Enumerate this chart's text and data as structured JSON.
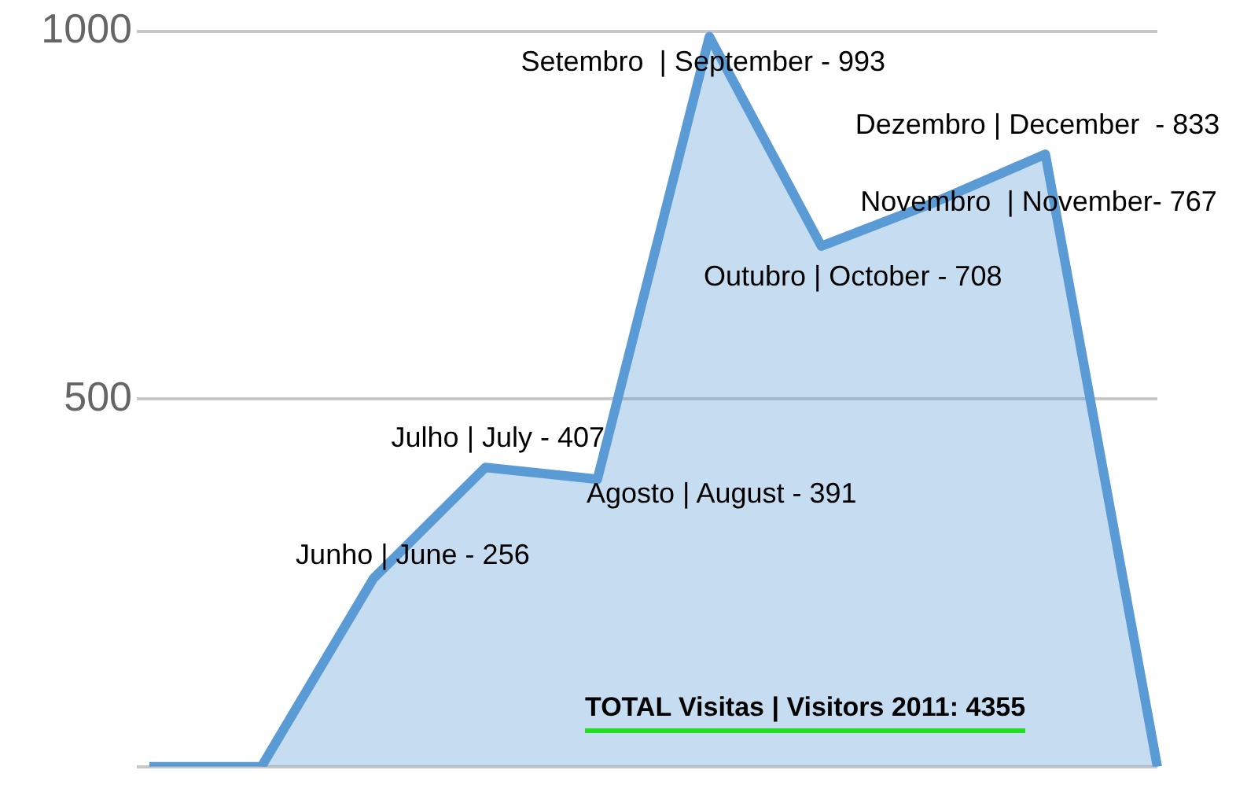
{
  "chart_data": {
    "type": "area",
    "categories": [
      null,
      null,
      null,
      null,
      null,
      null,
      null,
      null,
      null,
      null
    ],
    "series": [
      {
        "color": "#5b9bd5",
        "values": [
          0,
          0,
          256,
          407,
          391,
          993,
          708,
          767,
          833,
          0
        ],
        "value_labels": [
          null,
          null,
          "Junho | June - 256",
          "Julho | July - 407",
          "Agosto | August - 391",
          "Setembro  | September - 993",
          "Outubro | October - 708",
          "Novembro  | November- 767",
          "Dezembro | December  - 833",
          null
        ]
      }
    ],
    "ylim": [
      0,
      1000
    ],
    "yticks": [
      {
        "value": 0,
        "label": null
      },
      500,
      1000
    ],
    "grid": "y",
    "tick_labels": "y",
    "annotations": [
      "TOTAL Visitas  | Visitors 2011: 4355"
    ]
  }
}
